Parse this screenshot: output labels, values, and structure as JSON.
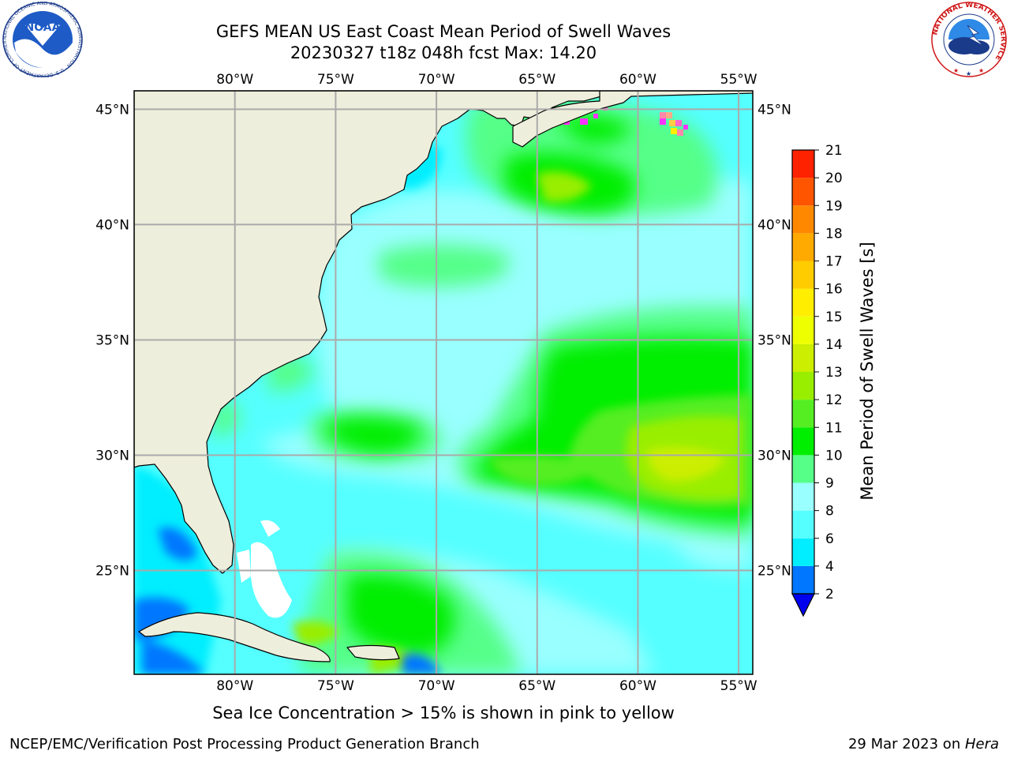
{
  "header": {
    "title_line1": "GEFS MEAN US East Coast Mean Period of Swell Waves",
    "title_line2": "20230327 t18z 048h fcst   Max: 14.20"
  },
  "logos": {
    "noaa_label": "NOAA",
    "noaa_ring_text": "NATIONAL OCEANIC AND ATMOSPHERIC ADMINISTRATION · U.S. DEPARTMENT OF COMMERCE",
    "nws_ring_text": "NATIONAL WEATHER SERVICE"
  },
  "map": {
    "lon_ticks": [
      "80°W",
      "75°W",
      "70°W",
      "65°W",
      "60°W",
      "55°W"
    ],
    "lon_values": [
      -80,
      -75,
      -70,
      -65,
      -60,
      -55
    ],
    "lat_ticks": [
      "45°N",
      "40°N",
      "35°N",
      "30°N",
      "25°N"
    ],
    "lat_values": [
      45,
      40,
      35,
      30,
      25
    ],
    "extent": {
      "lon_min": -85,
      "lon_max": -54.3,
      "lat_min": 20.5,
      "lat_max": 45.8
    },
    "grid": true,
    "colors": {
      "land": "#eeeedc",
      "ocean_default": "#55ffff",
      "coastline": "#000000",
      "grid": "#aaaaaa",
      "no_data": "#ffffff"
    }
  },
  "colorbar": {
    "label": "Mean Period of Swell Waves [s]",
    "ticks": [
      "2",
      "4",
      "6",
      "8",
      "9",
      "10",
      "11",
      "12",
      "13",
      "14",
      "15",
      "16",
      "17",
      "18",
      "19",
      "20",
      "21"
    ],
    "values": [
      2,
      4,
      6,
      8,
      9,
      10,
      11,
      12,
      13,
      14,
      15,
      16,
      17,
      18,
      19,
      20,
      21
    ],
    "colors": [
      "#0077ff",
      "#00eeff",
      "#55ffff",
      "#99ffff",
      "#55ff88",
      "#00ee00",
      "#55ee22",
      "#99ee00",
      "#ccee00",
      "#eeff00",
      "#ffee00",
      "#ffcc00",
      "#ffaa00",
      "#ff8800",
      "#ff5500",
      "#ff2200",
      "#ff0000"
    ],
    "extend_min_color": "#0000ee"
  },
  "footer": {
    "note": "Sea Ice Concentration > 15% is shown in pink to yellow",
    "credit": "NCEP/EMC/Verification Post Processing Product Generation Branch",
    "date": "29 Mar 2023 on ",
    "machine": "Hera"
  }
}
